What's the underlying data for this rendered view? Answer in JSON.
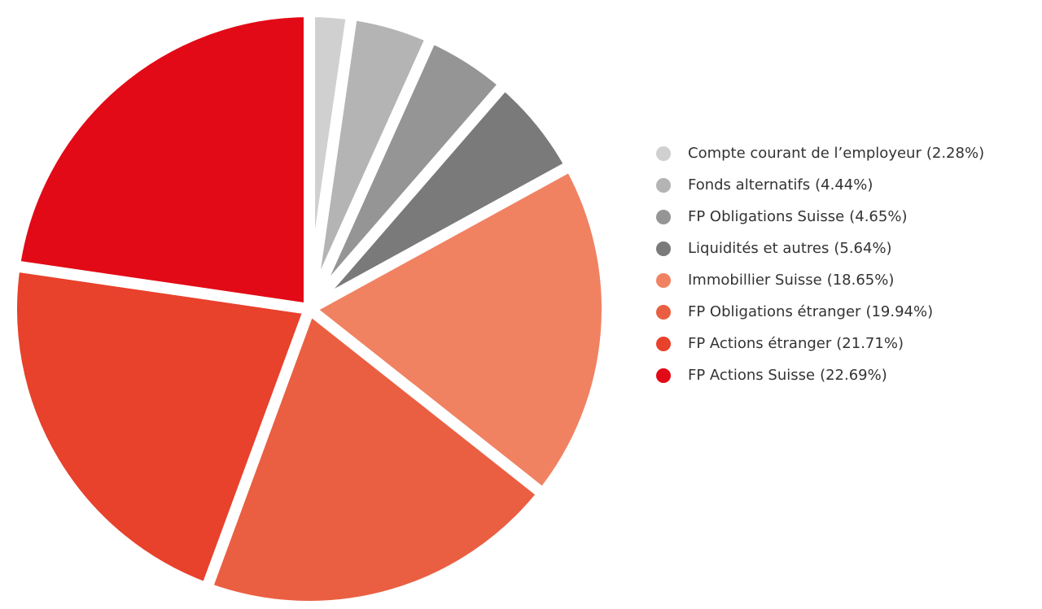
{
  "chart_data": {
    "type": "pie",
    "categories": [
      "Compte courant de l’employeur",
      "Fonds alternatifs",
      "FP Obligations Suisse",
      "Liquidités et autres",
      "Immobillier Suisse",
      "FP Obligations étranger",
      "FP Actions étranger",
      "FP Actions Suisse"
    ],
    "values": [
      2.28,
      4.44,
      4.65,
      5.64,
      18.65,
      19.94,
      21.71,
      22.69
    ],
    "value_labels": [
      "(2.28%)",
      "(4.44%)",
      "(4.65%)",
      "(5.64%)",
      "(18.65%)",
      "(19.94%)",
      "(21.71%)",
      "(22.69%)"
    ],
    "colors": [
      "#d0d0d0",
      "#b4b4b4",
      "#959595",
      "#7a7a7a",
      "#f08262",
      "#ea5f42",
      "#e8412c",
      "#e20a16"
    ],
    "legend": "right"
  }
}
